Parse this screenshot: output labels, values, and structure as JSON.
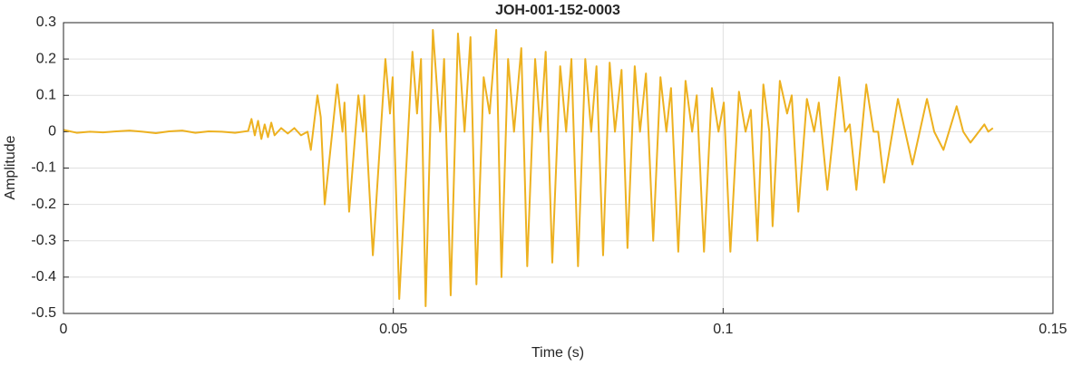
{
  "chart_data": {
    "type": "line",
    "title": "JOH-001-152-0003",
    "xlabel": "Time (s)",
    "ylabel": "Amplitude",
    "xlim": [
      0,
      0.15
    ],
    "xticks": [
      0,
      0.05,
      0.1,
      0.15
    ],
    "ylim": [
      -0.5,
      0.3
    ],
    "yticks": [
      -0.5,
      -0.4,
      -0.3,
      -0.2,
      -0.1,
      0,
      0.1,
      0.2,
      0.3
    ],
    "grid": true,
    "series": [
      {
        "color": "#EDB120",
        "x": [
          0,
          0.002,
          0.004,
          0.006,
          0.008,
          0.01,
          0.012,
          0.014,
          0.016,
          0.018,
          0.02,
          0.022,
          0.024,
          0.026,
          0.028,
          0.0285,
          0.029,
          0.0295,
          0.03,
          0.0305,
          0.031,
          0.0315,
          0.032,
          0.033,
          0.034,
          0.035,
          0.036,
          0.037,
          0.0375,
          0.0385,
          0.039,
          0.0396,
          0.0415,
          0.0423,
          0.0426,
          0.0433,
          0.0447,
          0.0454,
          0.0456,
          0.0469,
          0.0488,
          0.0495,
          0.0499,
          0.0509,
          0.0529,
          0.0536,
          0.0542,
          0.0549,
          0.056,
          0.0571,
          0.0577,
          0.0587,
          0.0598,
          0.0608,
          0.0617,
          0.0626,
          0.0637,
          0.0646,
          0.0656,
          0.0664,
          0.0674,
          0.0683,
          0.0694,
          0.0703,
          0.0715,
          0.0723,
          0.0731,
          0.0741,
          0.0753,
          0.0762,
          0.077,
          0.078,
          0.0791,
          0.08,
          0.0808,
          0.0818,
          0.0828,
          0.0836,
          0.0846,
          0.0855,
          0.0866,
          0.0874,
          0.0883,
          0.0894,
          0.0905,
          0.0914,
          0.0921,
          0.0932,
          0.0943,
          0.0953,
          0.096,
          0.0971,
          0.0983,
          0.0993,
          0.1001,
          0.1011,
          0.1024,
          0.1034,
          0.1042,
          0.1052,
          0.1061,
          0.107,
          0.1075,
          0.1086,
          0.1097,
          0.1104,
          0.1114,
          0.1127,
          0.1138,
          0.1145,
          0.1158,
          0.1176,
          0.1185,
          0.1192,
          0.1202,
          0.1217,
          0.1228,
          0.1235,
          0.1244,
          0.1265,
          0.1276,
          0.1287,
          0.1309,
          0.132,
          0.1334,
          0.1354,
          0.1364,
          0.1375,
          0.1396,
          0.1402,
          0.1409
        ],
        "values": [
          0.005,
          -0.003,
          0,
          -0.002,
          0.001,
          0.003,
          0,
          -0.004,
          0.001,
          0.003,
          -0.003,
          0.001,
          0,
          -0.003,
          0.002,
          0.035,
          -0.01,
          0.03,
          -0.02,
          0.02,
          -0.015,
          0.025,
          -0.01,
          0.01,
          -0.005,
          0.01,
          -0.01,
          0,
          -0.05,
          0.1,
          0.04,
          -0.2,
          0.13,
          0,
          0.08,
          -0.22,
          0.1,
          0,
          0.1,
          -0.34,
          0.2,
          0.05,
          0.15,
          -0.46,
          0.22,
          0.05,
          0.2,
          -0.48,
          0.28,
          0,
          0.2,
          -0.45,
          0.27,
          0,
          0.26,
          -0.42,
          0.15,
          0.05,
          0.28,
          -0.4,
          0.2,
          0,
          0.23,
          -0.37,
          0.2,
          0,
          0.22,
          -0.36,
          0.18,
          0,
          0.2,
          -0.37,
          0.2,
          0,
          0.18,
          -0.34,
          0.19,
          0,
          0.17,
          -0.32,
          0.18,
          0,
          0.16,
          -0.3,
          0.15,
          0,
          0.12,
          -0.33,
          0.14,
          0,
          0.1,
          -0.33,
          0.12,
          0,
          0.08,
          -0.33,
          0.11,
          0,
          0.06,
          -0.3,
          0.13,
          0,
          -0.26,
          0.14,
          0.05,
          0.1,
          -0.22,
          0.09,
          0,
          0.08,
          -0.16,
          0.15,
          0,
          0.02,
          -0.16,
          0.13,
          0,
          0,
          -0.14,
          0.09,
          0,
          -0.09,
          0.09,
          0,
          -0.05,
          0.07,
          0,
          -0.03,
          0.02,
          0,
          0.01
        ]
      }
    ]
  }
}
